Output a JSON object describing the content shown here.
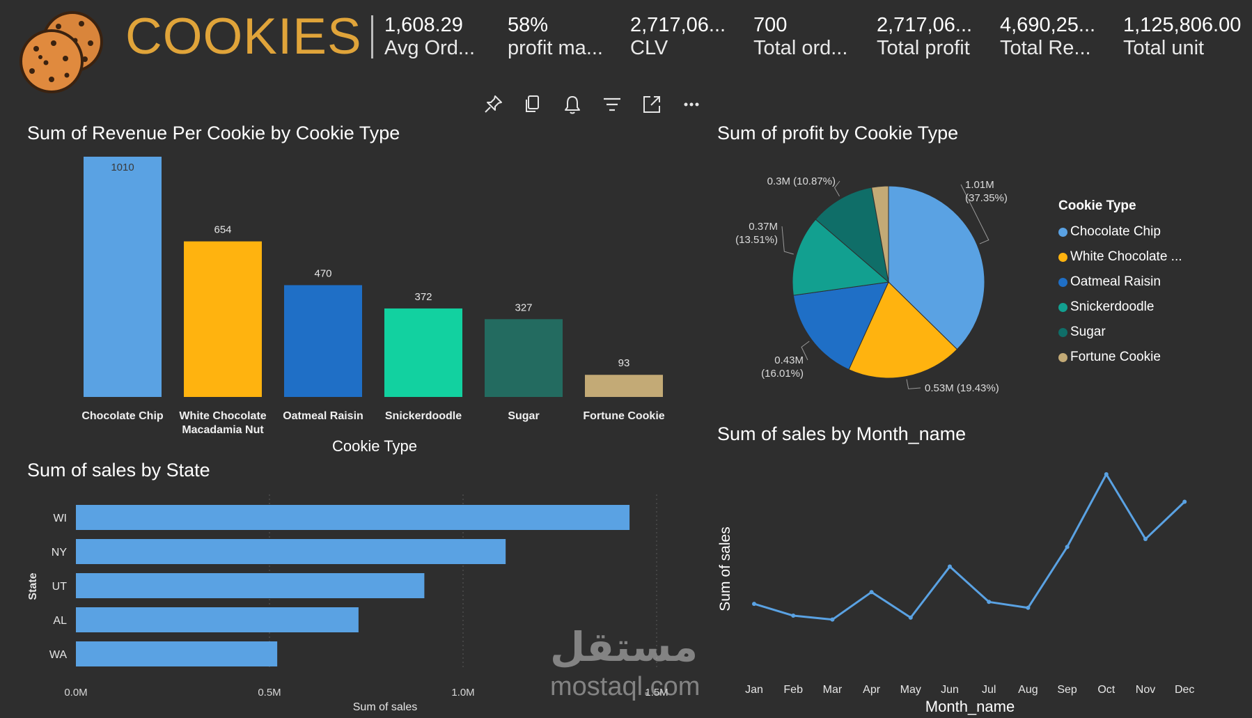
{
  "header": {
    "title": "COOKIES",
    "kpis": [
      {
        "value": "1,608.29",
        "label": "Avg Ord..."
      },
      {
        "value": "58%",
        "label": "profit ma..."
      },
      {
        "value": "2,717,06...",
        "label": "CLV"
      },
      {
        "value": "700",
        "label": "Total ord..."
      },
      {
        "value": "2,717,06...",
        "label": "Total profit"
      },
      {
        "value": "4,690,25...",
        "label": "Total Re..."
      },
      {
        "value": "1,125,806.00",
        "label": "Total unit"
      }
    ]
  },
  "toolbar": {
    "icons": [
      "pin-icon",
      "copy-icon",
      "bell-icon",
      "filter-icon",
      "focus-mode-icon",
      "more-options-icon"
    ]
  },
  "colors": {
    "background": "#2e2e2e",
    "title": "#e0a43a",
    "chocolate_chip": "#5aa2e3",
    "white_chocolate": "#ffb30f",
    "oatmeal_raisin": "#1f6fc6",
    "snickerdoodle": "#12d1a0",
    "sugar": "#236b60",
    "fortune_cookie": "#c3aa76",
    "bar_state": "#5aa2e3",
    "line": "#5aa2e3"
  },
  "watermark": {
    "arabic": "مستقل",
    "latin": "mostaql.com"
  },
  "chart_data": [
    {
      "id": "revenue-per-cookie",
      "type": "bar",
      "title": "Sum of Revenue Per Cookie by Cookie Type",
      "xlabel": "Cookie Type",
      "ylabel": "",
      "categories": [
        "Chocolate Chip",
        "White Chocolate Macadamia Nut",
        "Oatmeal Raisin",
        "Snickerdoodle",
        "Sugar",
        "Fortune Cookie"
      ],
      "category_lines": [
        [
          "Chocolate Chip"
        ],
        [
          "White Chocolate",
          "Macadamia Nut"
        ],
        [
          "Oatmeal Raisin"
        ],
        [
          "Snickerdoodle"
        ],
        [
          "Sugar"
        ],
        [
          "Fortune Cookie"
        ]
      ],
      "values": [
        1010,
        654,
        470,
        372,
        327,
        93
      ],
      "value_labels": [
        "1010",
        "654",
        "470",
        "372",
        "327",
        "93"
      ],
      "colors": [
        "#5aa2e3",
        "#ffb30f",
        "#1f6fc6",
        "#12d1a0",
        "#236b60",
        "#c3aa76"
      ],
      "ylim": [
        0,
        1010
      ],
      "grid": false
    },
    {
      "id": "profit-by-cookie",
      "type": "pie",
      "title": "Sum of profit by Cookie Type",
      "legend_title": "Cookie Type",
      "legend_position": "right",
      "labels": [
        "Chocolate Chip",
        "White Chocolate ...",
        "Oatmeal Raisin",
        "Snickerdoodle",
        "Sugar",
        "Fortune Cookie"
      ],
      "values": [
        37.35,
        19.43,
        16.01,
        13.51,
        10.87,
        2.83
      ],
      "data_labels": [
        [
          "1.01M",
          "(37.35%)"
        ],
        [
          "0.53M (19.43%)"
        ],
        [
          "0.43M",
          "(16.01%)"
        ],
        [
          "0.37M",
          "(13.51%)"
        ],
        [
          "0.3M (10.87%)"
        ],
        []
      ],
      "colors": [
        "#5aa2e3",
        "#ffb30f",
        "#1f6fc6",
        "#12a090",
        "#0f6e68",
        "#c3aa76"
      ]
    },
    {
      "id": "sales-by-state",
      "type": "bar",
      "orientation": "horizontal",
      "title": "Sum of sales by State",
      "xlabel": "Sum of sales",
      "ylabel": "State",
      "categories": [
        "WI",
        "NY",
        "UT",
        "AL",
        "WA"
      ],
      "values": [
        1.43,
        1.11,
        0.9,
        0.73,
        0.52
      ],
      "xlim": [
        0,
        1.5
      ],
      "xticks": [
        "0.0M",
        "0.5M",
        "1.0M",
        "1.5M"
      ],
      "grid": true
    },
    {
      "id": "sales-by-month",
      "type": "line",
      "title": "Sum of sales by Month_name",
      "xlabel": "Month_name",
      "ylabel": "Sum of sales",
      "x": [
        "Jan",
        "Feb",
        "Mar",
        "Apr",
        "May",
        "Jun",
        "Jul",
        "Aug",
        "Sep",
        "Oct",
        "Nov",
        "Dec"
      ],
      "values": [
        34,
        28,
        26,
        40,
        27,
        53,
        35,
        32,
        63,
        100,
        67,
        86
      ],
      "ylim": [
        0,
        100
      ],
      "grid": false
    }
  ]
}
